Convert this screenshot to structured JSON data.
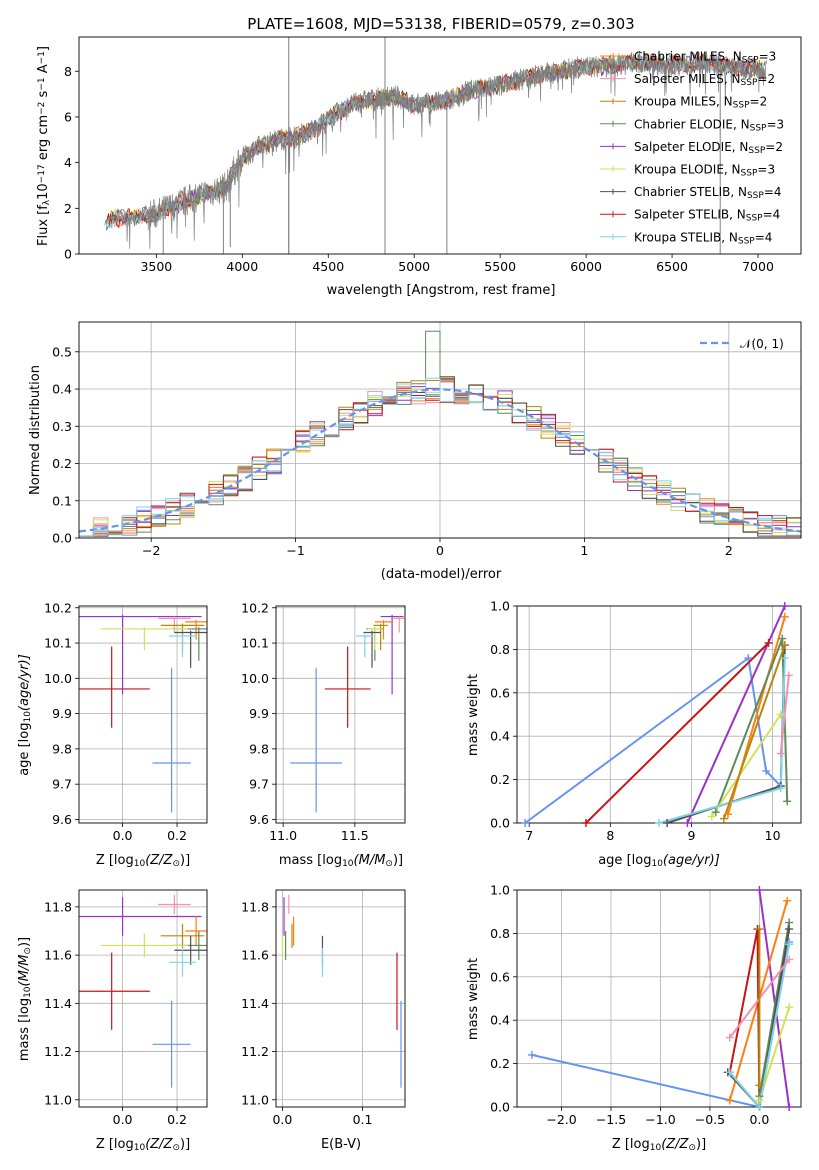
{
  "title": "PLATE=1608, MJD=53138, FIBERID=0579, z=0.303",
  "colors": {
    "chabrier_miles": "#ff7f0e",
    "salpeter_miles": "#f78fb3",
    "kroupa_miles": "#b8860b",
    "chabrier_elodie": "#5b8c5a",
    "salpeter_elodie": "#9b30c8",
    "kroupa_elodie": "#d4e157",
    "chabrier_stelib": "#505050",
    "salpeter_stelib": "#c81414",
    "kroupa_stelib": "#7fd3e6",
    "main": "#6495ed",
    "data": "#808080"
  },
  "chart_data": [
    {
      "id": "spectrum",
      "type": "line",
      "xlabel": "wavelength [Angstrom, rest frame]",
      "ylabel": "Flux [f",
      "ylabel_sub": "λ",
      "ylabel_rest": "10",
      "ylabel_exp": "−17",
      "ylabel_units": " erg cm",
      "ylabel_exp2": "−2",
      "ylabel_s": " s",
      "ylabel_exp3": "−1",
      "ylabel_A": " A",
      "ylabel_exp4": "−1",
      "ylabel_end": "]",
      "xlim": [
        3050,
        7250
      ],
      "ylim": [
        0,
        9.5
      ],
      "xticks": [
        "3500",
        "4000",
        "4500",
        "5000",
        "5500",
        "6000",
        "6500",
        "7000"
      ],
      "yticks": [
        "0",
        "2",
        "4",
        "6",
        "8"
      ],
      "legend": [
        {
          "label": "Chabrier MILES, N",
          "sub": "SSP",
          "n": "=3",
          "color": "chabrier_miles"
        },
        {
          "label": "Salpeter MILES, N",
          "sub": "SSP",
          "n": "=2",
          "color": "salpeter_miles"
        },
        {
          "label": "Kroupa MILES, N",
          "sub": "SSP",
          "n": "=2",
          "color": "kroupa_miles"
        },
        {
          "label": "Chabrier ELODIE, N",
          "sub": "SSP",
          "n": "=3",
          "color": "chabrier_elodie"
        },
        {
          "label": "Salpeter ELODIE, N",
          "sub": "SSP",
          "n": "=2",
          "color": "salpeter_elodie"
        },
        {
          "label": "Kroupa ELODIE, N",
          "sub": "SSP",
          "n": "=3",
          "color": "kroupa_elodie"
        },
        {
          "label": "Chabrier STELIB, N",
          "sub": "SSP",
          "n": "=4",
          "color": "chabrier_stelib"
        },
        {
          "label": "Salpeter STELIB, N",
          "sub": "SSP",
          "n": "=4",
          "color": "salpeter_stelib"
        },
        {
          "label": "Kroupa STELIB, N",
          "sub": "SSP",
          "n": "=4",
          "color": "kroupa_stelib"
        }
      ],
      "continuum": [
        [
          3200,
          1.4
        ],
        [
          3250,
          1.6
        ],
        [
          3300,
          1.55
        ],
        [
          3400,
          1.65
        ],
        [
          3500,
          1.75
        ],
        [
          3600,
          2.1
        ],
        [
          3700,
          2.4
        ],
        [
          3800,
          2.7
        ],
        [
          3900,
          2.9
        ],
        [
          3950,
          3.6
        ],
        [
          4000,
          4.2
        ],
        [
          4100,
          4.7
        ],
        [
          4200,
          5.0
        ],
        [
          4300,
          5.1
        ],
        [
          4400,
          5.4
        ],
        [
          4500,
          5.9
        ],
        [
          4600,
          6.4
        ],
        [
          4700,
          6.7
        ],
        [
          4800,
          6.8
        ],
        [
          4900,
          6.9
        ],
        [
          5000,
          6.5
        ],
        [
          5100,
          6.6
        ],
        [
          5200,
          6.7
        ],
        [
          5300,
          7.1
        ],
        [
          5400,
          7.3
        ],
        [
          5500,
          7.4
        ],
        [
          5600,
          7.6
        ],
        [
          5700,
          7.8
        ],
        [
          5800,
          7.9
        ],
        [
          5900,
          8.1
        ],
        [
          6000,
          8.2
        ],
        [
          6100,
          8.2
        ],
        [
          6200,
          8.3
        ],
        [
          6300,
          8.4
        ],
        [
          6400,
          8.3
        ],
        [
          6500,
          8.3
        ],
        [
          6600,
          8.3
        ],
        [
          6700,
          8.4
        ],
        [
          6800,
          8.2
        ],
        [
          6900,
          8.2
        ],
        [
          7000,
          8.1
        ],
        [
          7050,
          8.1
        ]
      ],
      "dips": [
        [
          3540,
          0.0
        ],
        [
          3890,
          0.0
        ],
        [
          3930,
          0.3
        ],
        [
          4270,
          0.0
        ],
        [
          4830,
          0.0
        ],
        [
          5190,
          0.0
        ],
        [
          6780,
          0.0
        ]
      ]
    },
    {
      "id": "residuals",
      "type": "histogram",
      "xlabel": "(data-model)/error",
      "ylabel": "Normed distribution",
      "xlim": [
        -2.5,
        2.5
      ],
      "ylim": [
        0,
        0.58
      ],
      "xticks": [
        "−2",
        "−1",
        "0",
        "1",
        "2"
      ],
      "yticks": [
        "0.0",
        "0.1",
        "0.2",
        "0.3",
        "0.4",
        "0.5"
      ],
      "normal_label": "𝒩(0, 1)",
      "bins_start": -2.5,
      "bin_width": 0.1
    },
    {
      "id": "age_vs_Z",
      "type": "scatter",
      "xlabel": "Z [log",
      "xlabel_sub": "10",
      "xlabel_rest": "(Z/Z",
      "xlabel_sun": "⊙",
      "xlabel_end": ")]",
      "ylabel": "age  [log",
      "ylabel_sub": "10",
      "ylabel_rest": "(age/yr)]",
      "xlim": [
        -0.16,
        0.31
      ],
      "ylim": [
        9.59,
        10.205
      ],
      "xticks": [
        {
          "v": 0.0,
          "t": "0.0"
        },
        {
          "v": 0.2,
          "t": "0.2"
        }
      ],
      "yticks": [
        {
          "v": 9.6,
          "t": "9.6"
        },
        {
          "v": 9.7,
          "t": "9.7"
        },
        {
          "v": 9.8,
          "t": "9.8"
        },
        {
          "v": 9.9,
          "t": "9.9"
        },
        {
          "v": 10.0,
          "t": "10.0"
        },
        {
          "v": 10.1,
          "t": "10.1"
        },
        {
          "v": 10.2,
          "t": "10.2"
        }
      ]
    },
    {
      "id": "age_vs_mass",
      "type": "scatter",
      "xlabel": "mass [log",
      "xlabel_sub": "10",
      "xlabel_rest": "(M/M",
      "xlabel_sun": "⊙",
      "xlabel_end": ")]",
      "xlim": [
        10.95,
        11.85
      ],
      "ylim": [
        9.59,
        10.205
      ],
      "xticks": [
        {
          "v": 11.0,
          "t": "11.0"
        },
        {
          "v": 11.5,
          "t": "11.5"
        }
      ],
      "yticks": [
        {
          "v": 9.6,
          "t": "9.6"
        },
        {
          "v": 9.7,
          "t": "9.7"
        },
        {
          "v": 9.8,
          "t": "9.8"
        },
        {
          "v": 9.9,
          "t": "9.9"
        },
        {
          "v": 10.0,
          "t": "10.0"
        },
        {
          "v": 10.1,
          "t": "10.1"
        },
        {
          "v": 10.2,
          "t": "10.2"
        }
      ]
    },
    {
      "id": "weight_vs_age",
      "type": "line",
      "xlabel": "age  [log",
      "xlabel_sub": "10",
      "xlabel_rest": "(age/yr)]",
      "ylabel": "mass weight",
      "xlim": [
        6.85,
        10.35
      ],
      "ylim": [
        0,
        1.0
      ],
      "xticks": [
        {
          "v": 7,
          "t": "7"
        },
        {
          "v": 8,
          "t": "8"
        },
        {
          "v": 9,
          "t": "9"
        },
        {
          "v": 10,
          "t": "10"
        }
      ],
      "yticks": [
        {
          "v": 0.0,
          "t": "0.0"
        },
        {
          "v": 0.2,
          "t": "0.2"
        },
        {
          "v": 0.4,
          "t": "0.4"
        },
        {
          "v": 0.6,
          "t": "0.6"
        },
        {
          "v": 0.8,
          "t": "0.8"
        },
        {
          "v": 1.0,
          "t": "1.0"
        }
      ]
    },
    {
      "id": "mass_vs_Z",
      "type": "scatter",
      "xlabel": "Z [log",
      "xlabel_sub": "10",
      "xlabel_rest": "(Z/Z",
      "xlabel_sun": "⊙",
      "xlabel_end": ")]",
      "ylabel": "mass [log",
      "ylabel_sub": "10",
      "ylabel_rest": "(M/M",
      "ylabel_sun": "⊙",
      "ylabel_end": ")]",
      "xlim": [
        -0.16,
        0.31
      ],
      "ylim": [
        10.97,
        11.87
      ],
      "xticks": [
        {
          "v": 0.0,
          "t": "0.0"
        },
        {
          "v": 0.2,
          "t": "0.2"
        }
      ],
      "yticks": [
        {
          "v": 11.0,
          "t": "11.0"
        },
        {
          "v": 11.2,
          "t": "11.2"
        },
        {
          "v": 11.4,
          "t": "11.4"
        },
        {
          "v": 11.6,
          "t": "11.6"
        },
        {
          "v": 11.8,
          "t": "11.8"
        }
      ]
    },
    {
      "id": "mass_vs_ebv",
      "type": "scatter",
      "xlabel": "E(B-V)",
      "xlim": [
        -0.008,
        0.153
      ],
      "ylim": [
        10.97,
        11.87
      ],
      "xticks": [
        {
          "v": 0.0,
          "t": "0.0"
        },
        {
          "v": 0.1,
          "t": "0.1"
        }
      ],
      "yticks": [
        {
          "v": 11.0,
          "t": "11.0"
        },
        {
          "v": 11.2,
          "t": "11.2"
        },
        {
          "v": 11.4,
          "t": "11.4"
        },
        {
          "v": 11.6,
          "t": "11.6"
        },
        {
          "v": 11.8,
          "t": "11.8"
        }
      ]
    },
    {
      "id": "weight_vs_Z",
      "type": "line",
      "xlabel": "Z [log",
      "xlabel_sub": "10",
      "xlabel_rest": "(Z/Z",
      "xlabel_sun": "⊙",
      "xlabel_end": ")]",
      "ylabel": "mass weight",
      "xlim": [
        -2.45,
        0.42
      ],
      "ylim": [
        0,
        1.0
      ],
      "xticks": [
        {
          "v": -2.0,
          "t": "−2.0"
        },
        {
          "v": -1.5,
          "t": "−1.5"
        },
        {
          "v": -1.0,
          "t": "−1.0"
        },
        {
          "v": -0.5,
          "t": "−0.5"
        },
        {
          "v": 0.0,
          "t": "0.0"
        }
      ],
      "yticks": [
        {
          "v": 0.0,
          "t": "0.0"
        },
        {
          "v": 0.2,
          "t": "0.2"
        },
        {
          "v": 0.4,
          "t": "0.4"
        },
        {
          "v": 0.6,
          "t": "0.6"
        },
        {
          "v": 0.8,
          "t": "0.8"
        },
        {
          "v": 1.0,
          "t": "1.0"
        }
      ]
    }
  ],
  "fits": [
    {
      "color": "main",
      "Z": 0.18,
      "Zerr": 0.07,
      "age": 9.76,
      "ageErr_lo": 0.14,
      "ageErr_hi": 0.27,
      "mass": 11.23,
      "massErr": 0.18,
      "ebv": 0.148
    },
    {
      "color": "salpeter_stelib",
      "Z": -0.04,
      "Zerr": 0.14,
      "age": 9.97,
      "ageErr_lo": 0.11,
      "ageErr_hi": 0.12,
      "mass": 11.45,
      "massErr": 0.16,
      "ebv": 0.143
    },
    {
      "color": "salpeter_elodie",
      "Z": 0.0,
      "Zerr": 0.29,
      "age": 10.175,
      "ageErr_lo": 0.22,
      "ageErr_hi": 0.0,
      "mass": 11.76,
      "massErr": 0.08,
      "ebv": 0.002
    },
    {
      "color": "salpeter_miles",
      "Z": 0.19,
      "Zerr": 0.06,
      "age": 10.17,
      "ageErr_lo": 0.04,
      "ageErr_hi": 0.0,
      "mass": 11.81,
      "massErr": 0.04,
      "ebv": 0.008
    },
    {
      "color": "chabrier_miles",
      "Z": 0.27,
      "Zerr": 0.04,
      "age": 10.16,
      "ageErr_lo": 0.05,
      "ageErr_hi": 0.0,
      "mass": 11.7,
      "massErr": 0.06,
      "ebv": 0.014
    },
    {
      "color": "kroupa_miles",
      "Z": 0.22,
      "Zerr": 0.08,
      "age": 10.15,
      "ageErr_lo": 0.07,
      "ageErr_hi": 0.0,
      "mass": 11.68,
      "massErr": 0.05,
      "ebv": 0.012
    },
    {
      "color": "chabrier_elodie",
      "Z": 0.28,
      "Zerr": 0.1,
      "age": 10.14,
      "ageErr_lo": 0.09,
      "ageErr_hi": 0.0,
      "mass": 11.64,
      "massErr": 0.06,
      "ebv": 0.004
    },
    {
      "color": "kroupa_elodie",
      "Z": 0.08,
      "Zerr": 0.16,
      "age": 10.14,
      "ageErr_lo": 0.06,
      "ageErr_hi": 0.0,
      "mass": 11.64,
      "massErr": 0.05,
      "ebv": 0.0
    },
    {
      "color": "chabrier_stelib",
      "Z": 0.25,
      "Zerr": 0.06,
      "age": 10.13,
      "ageErr_lo": 0.1,
      "ageErr_hi": 0.0,
      "mass": 11.62,
      "massErr": 0.06,
      "ebv": 0.05
    },
    {
      "color": "kroupa_stelib",
      "Z": 0.22,
      "Zerr": 0.05,
      "age": 10.12,
      "ageErr_lo": 0.06,
      "ageErr_hi": 0.0,
      "mass": 11.57,
      "massErr": 0.06,
      "ebv": 0.05
    }
  ],
  "weights_age": [
    {
      "color": "main",
      "pts": [
        [
          6.95,
          0.0
        ],
        [
          9.7,
          0.76
        ],
        [
          9.92,
          0.24
        ],
        [
          10.1,
          0.17
        ]
      ]
    },
    {
      "color": "salpeter_elodie",
      "pts": [
        [
          8.95,
          0.0
        ],
        [
          10.15,
          1.0
        ]
      ]
    },
    {
      "color": "chabrier_miles",
      "pts": [
        [
          9.45,
          0.04
        ],
        [
          10.15,
          0.95
        ]
      ]
    },
    {
      "color": "salpeter_stelib",
      "pts": [
        [
          7.7,
          0.0
        ],
        [
          9.95,
          0.83
        ]
      ]
    },
    {
      "color": "chabrier_elodie",
      "pts": [
        [
          9.3,
          0.05
        ],
        [
          10.12,
          0.85
        ],
        [
          10.18,
          0.1
        ]
      ]
    },
    {
      "color": "chabrier_stelib",
      "pts": [
        [
          8.7,
          0.0
        ],
        [
          10.1,
          0.17
        ],
        [
          10.15,
          0.82
        ]
      ]
    },
    {
      "color": "kroupa_elodie",
      "pts": [
        [
          9.25,
          0.03
        ],
        [
          10.1,
          0.5
        ]
      ]
    },
    {
      "color": "kroupa_stelib",
      "pts": [
        [
          8.6,
          0.0
        ],
        [
          10.1,
          0.16
        ],
        [
          10.15,
          0.76
        ]
      ]
    },
    {
      "color": "salpeter_miles",
      "pts": [
        [
          10.1,
          0.32
        ],
        [
          10.2,
          0.68
        ]
      ]
    },
    {
      "color": "kroupa_miles",
      "pts": [
        [
          9.4,
          0.02
        ],
        [
          10.15,
          0.82
        ]
      ]
    }
  ],
  "weights_Z": [
    {
      "color": "main",
      "pts": [
        [
          -2.3,
          0.24
        ],
        [
          0.0,
          0.0
        ],
        [
          0.3,
          0.76
        ]
      ]
    },
    {
      "color": "salpeter_elodie",
      "pts": [
        [
          0.0,
          1.0
        ],
        [
          0.3,
          0.0
        ]
      ]
    },
    {
      "color": "chabrier_miles",
      "pts": [
        [
          -0.3,
          0.03
        ],
        [
          0.28,
          0.95
        ]
      ]
    },
    {
      "color": "salpeter_stelib",
      "pts": [
        [
          -0.3,
          0.16
        ],
        [
          -0.02,
          0.82
        ],
        [
          0.0,
          0.0
        ]
      ]
    },
    {
      "color": "chabrier_elodie",
      "pts": [
        [
          0.0,
          0.05
        ],
        [
          0.3,
          0.85
        ]
      ]
    },
    {
      "color": "chabrier_stelib",
      "pts": [
        [
          -0.32,
          0.16
        ],
        [
          0.0,
          0.0
        ],
        [
          0.3,
          0.82
        ]
      ]
    },
    {
      "color": "kroupa_elodie",
      "pts": [
        [
          0.0,
          0.03
        ],
        [
          0.3,
          0.46
        ]
      ]
    },
    {
      "color": "kroupa_stelib",
      "pts": [
        [
          -0.3,
          0.16
        ],
        [
          0.0,
          0.0
        ],
        [
          0.3,
          0.75
        ]
      ]
    },
    {
      "color": "salpeter_miles",
      "pts": [
        [
          -0.3,
          0.32
        ],
        [
          0.3,
          0.68
        ]
      ]
    },
    {
      "color": "kroupa_miles",
      "pts": [
        [
          0.0,
          0.82
        ],
        [
          0.0,
          0.1
        ]
      ]
    }
  ]
}
